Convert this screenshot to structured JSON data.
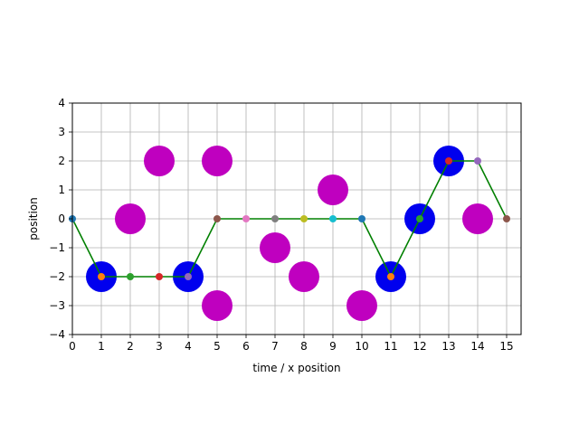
{
  "chart_data": {
    "type": "scatter",
    "xlabel": "time / x position",
    "ylabel": "position",
    "xlim": [
      0,
      15.5
    ],
    "ylim": [
      -4,
      4
    ],
    "xticks": [
      0,
      1,
      2,
      3,
      4,
      5,
      6,
      7,
      8,
      9,
      10,
      11,
      12,
      13,
      14,
      15
    ],
    "yticks": [
      -4,
      -3,
      -2,
      -1,
      0,
      1,
      2,
      3,
      4
    ],
    "grid": true,
    "colors": {
      "line": "#008000",
      "large_blue": "#0000ee",
      "large_magenta": "#bf00bf",
      "grid": "#b0b0b0"
    },
    "series": [
      {
        "kind": "large_blue",
        "points": [
          [
            1,
            -2
          ],
          [
            4,
            -2
          ],
          [
            11,
            -2
          ],
          [
            12,
            0
          ],
          [
            13,
            2
          ]
        ]
      },
      {
        "kind": "large_magenta",
        "points": [
          [
            2,
            0
          ],
          [
            3,
            2
          ],
          [
            5,
            2
          ],
          [
            5,
            -3
          ],
          [
            7,
            -1
          ],
          [
            8,
            -2
          ],
          [
            9,
            1
          ],
          [
            10,
            -3
          ],
          [
            14,
            0
          ]
        ]
      },
      {
        "kind": "line",
        "x": [
          0,
          1,
          2,
          3,
          4,
          5,
          6,
          7,
          8,
          9,
          10,
          11,
          12,
          13,
          14,
          15
        ],
        "y": [
          0,
          -2,
          -2,
          -2,
          -2,
          0,
          0,
          0,
          0,
          0,
          0,
          -2,
          0,
          2,
          2,
          0
        ]
      },
      {
        "kind": "small_markers",
        "points": [
          {
            "x": 0,
            "y": 0,
            "color": "#1f77b4"
          },
          {
            "x": 1,
            "y": -2,
            "color": "#ff7f0e"
          },
          {
            "x": 2,
            "y": -2,
            "color": "#2ca02c"
          },
          {
            "x": 3,
            "y": -2,
            "color": "#d62728"
          },
          {
            "x": 4,
            "y": -2,
            "color": "#9467bd"
          },
          {
            "x": 5,
            "y": 0,
            "color": "#8c564b"
          },
          {
            "x": 6,
            "y": 0,
            "color": "#e377c2"
          },
          {
            "x": 7,
            "y": 0,
            "color": "#7f7f7f"
          },
          {
            "x": 8,
            "y": 0,
            "color": "#bcbd22"
          },
          {
            "x": 9,
            "y": 0,
            "color": "#17becf"
          },
          {
            "x": 10,
            "y": 0,
            "color": "#1f77b4"
          },
          {
            "x": 11,
            "y": -2,
            "color": "#ff7f0e"
          },
          {
            "x": 12,
            "y": 0,
            "color": "#2ca02c"
          },
          {
            "x": 13,
            "y": 2,
            "color": "#d62728"
          },
          {
            "x": 14,
            "y": 2,
            "color": "#9467bd"
          },
          {
            "x": 15,
            "y": 0,
            "color": "#8c564b"
          }
        ]
      }
    ]
  }
}
